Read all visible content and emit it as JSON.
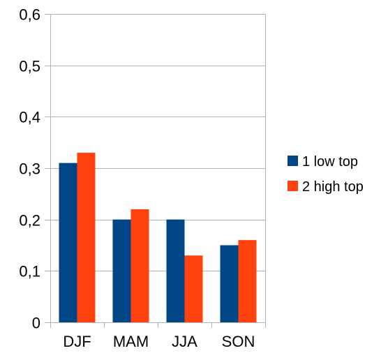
{
  "chart_data": {
    "type": "bar",
    "categories": [
      "DJF",
      "MAM",
      "JJA",
      "SON"
    ],
    "series": [
      {
        "name": "1 low top",
        "values": [
          0.31,
          0.2,
          0.2,
          0.15
        ],
        "color": "#004586"
      },
      {
        "name": "2 high top",
        "values": [
          0.33,
          0.22,
          0.13,
          0.16
        ],
        "color": "#ff420e"
      }
    ],
    "ylim": [
      0,
      0.6
    ],
    "yticks": [
      0,
      0.1,
      0.2,
      0.3,
      0.4,
      0.5,
      0.6
    ],
    "ytick_labels": [
      "0",
      "0,1",
      "0,2",
      "0,3",
      "0,4",
      "0,5",
      "0,6"
    ],
    "grid": true,
    "legend_position": "right",
    "title": "",
    "xlabel": "",
    "ylabel": ""
  }
}
